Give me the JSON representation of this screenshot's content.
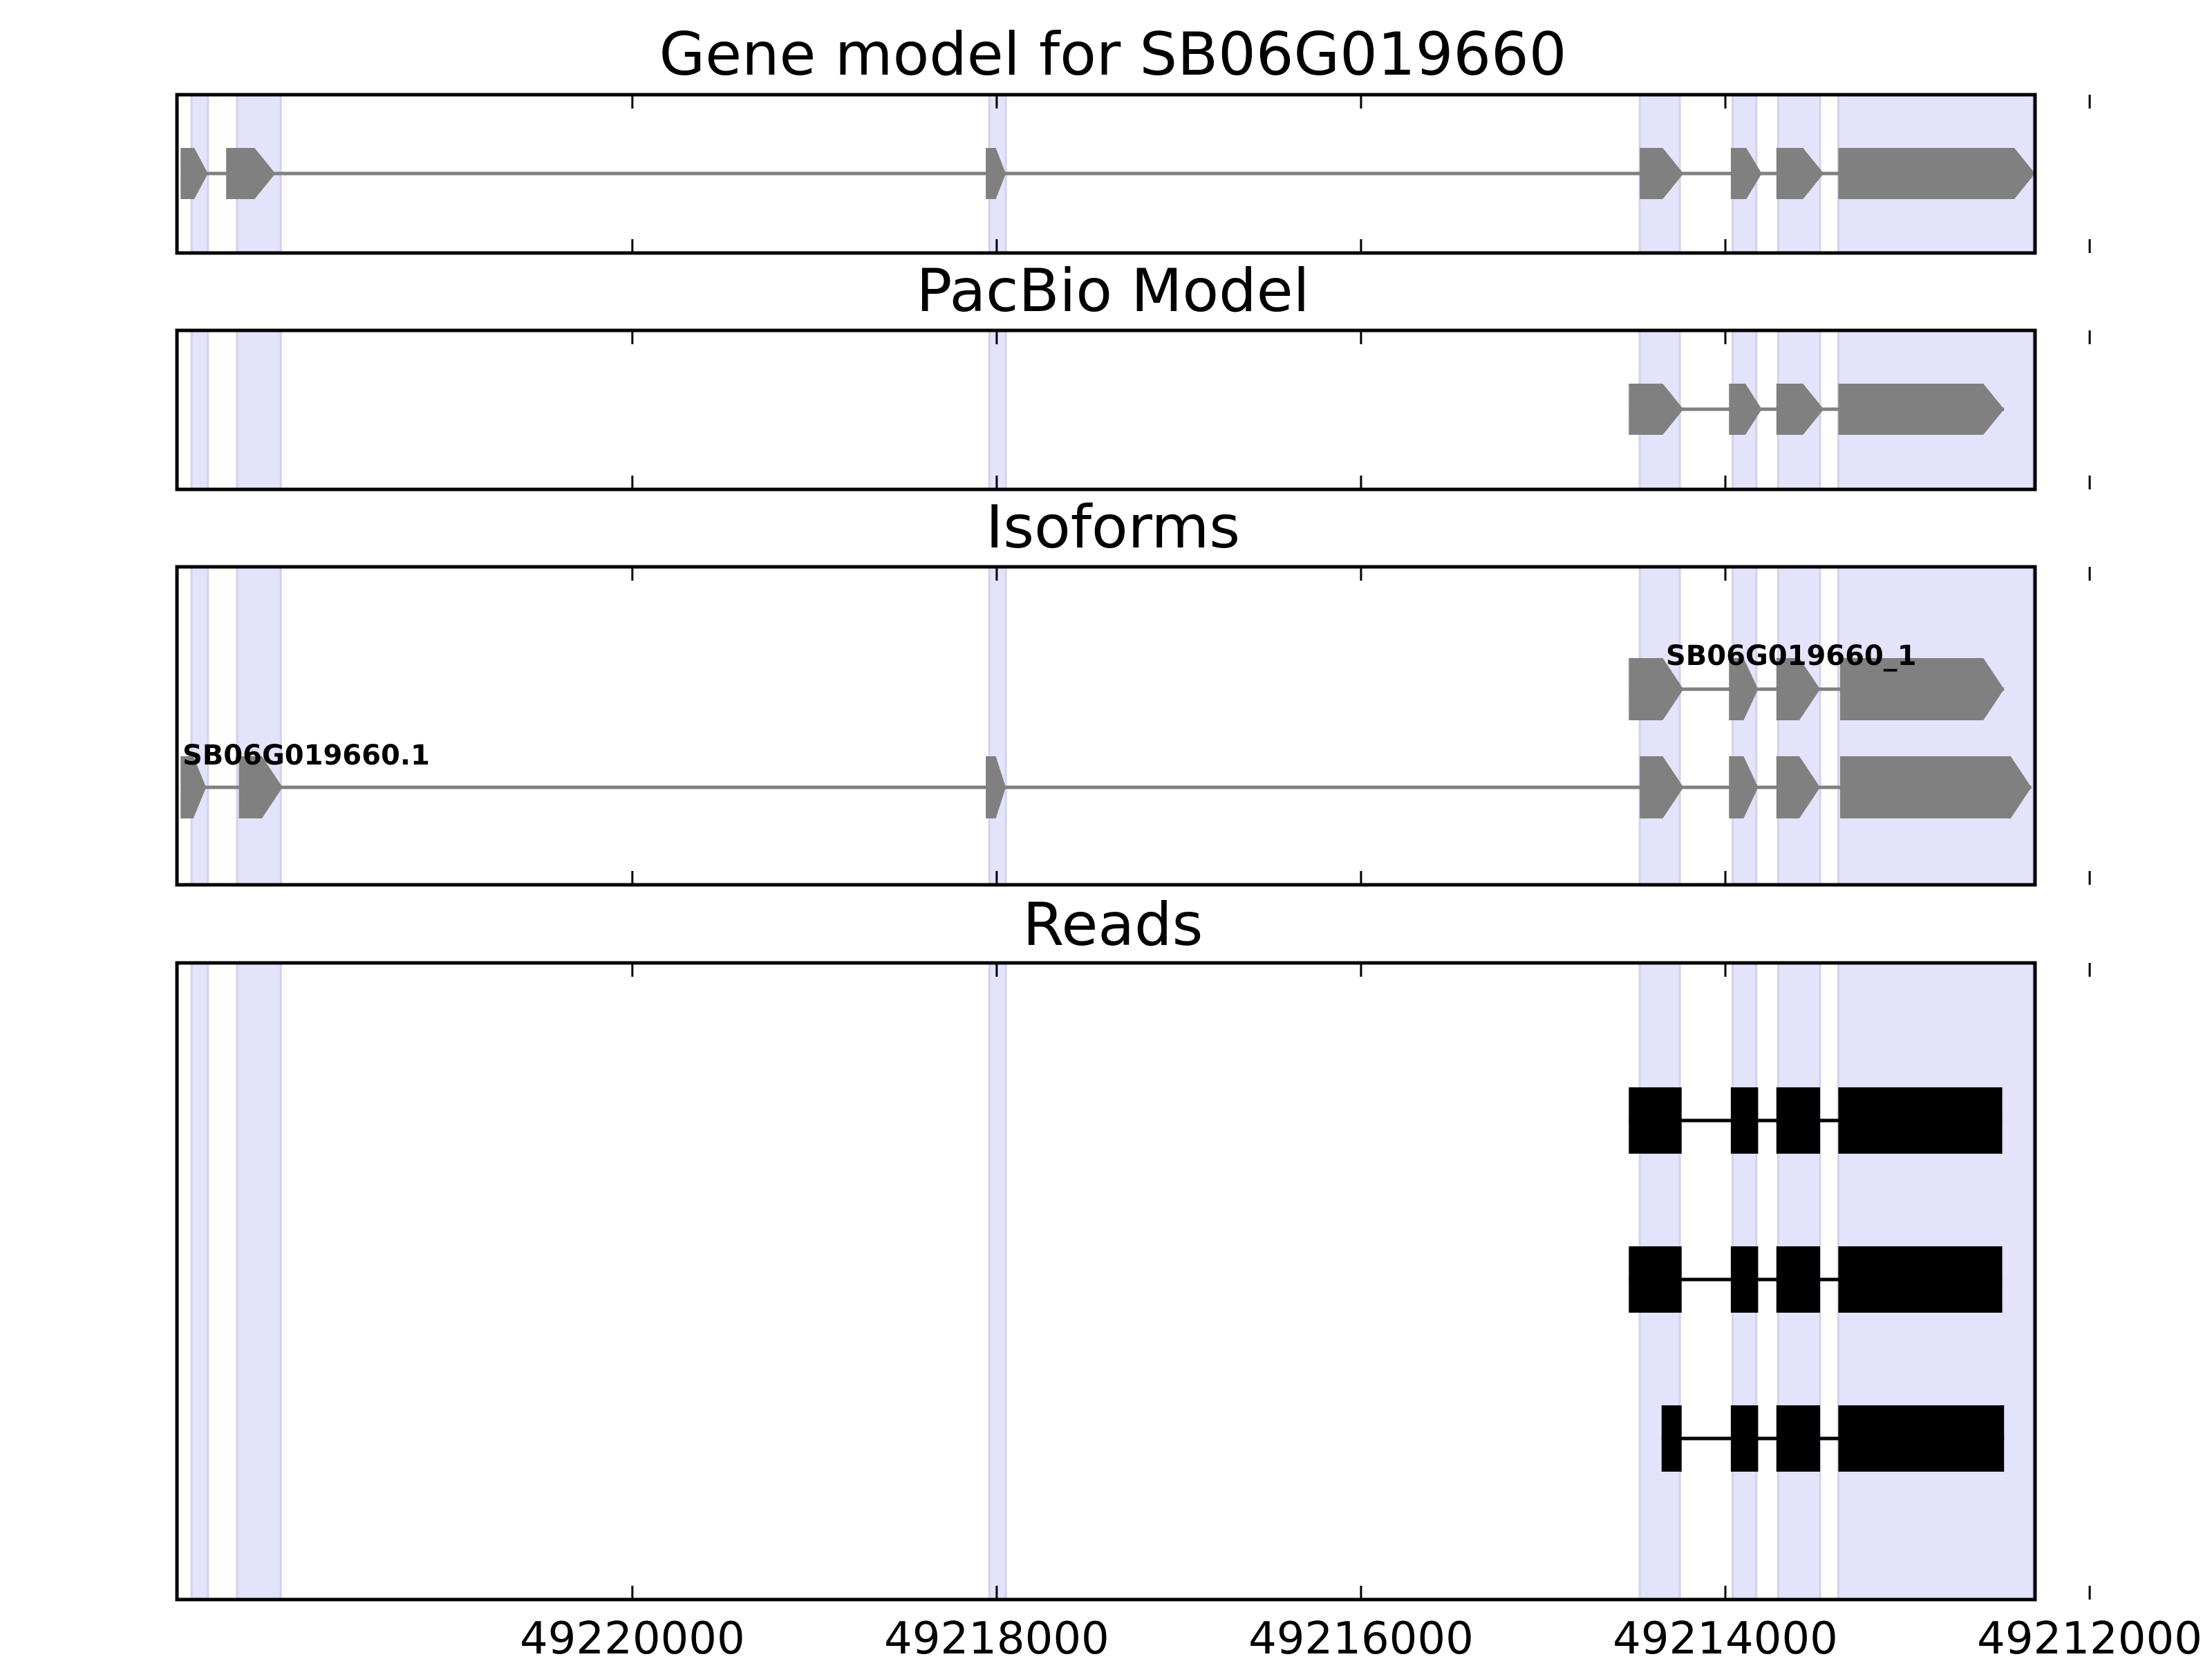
{
  "chart_data": {
    "type": "gene-track",
    "strand": "-",
    "xlim": [
      49222500,
      49212300
    ],
    "xticks": [
      49220000,
      49218000,
      49216000,
      49214000,
      49212000
    ],
    "xtick_labels": [
      "49220000",
      "49218000",
      "49216000",
      "49214000",
      "49212000"
    ],
    "highlight_color": "#e3e3fb",
    "exon_color": "#808080",
    "read_color": "#000000",
    "highlight_regions": [
      [
        49222420,
        49222330
      ],
      [
        49222170,
        49221930
      ],
      [
        49218040,
        49217950
      ],
      [
        49214470,
        49214250
      ],
      [
        49213960,
        49213830
      ],
      [
        49213710,
        49213480
      ],
      [
        49213380,
        49212310
      ]
    ],
    "panels": [
      {
        "key": "gene_model",
        "title": "Gene model for SB06G019660",
        "rows": [
          {
            "label": "",
            "exons": [
              [
                49222480,
                49222330
              ],
              [
                49222230,
                49221960
              ],
              [
                49218060,
                49217950
              ],
              [
                49214470,
                49214230
              ],
              [
                49213970,
                49213800
              ],
              [
                49213720,
                49213460
              ],
              [
                49213380,
                49212300
              ]
            ]
          }
        ]
      },
      {
        "key": "pacbio_model",
        "title": "PacBio Model",
        "rows": [
          {
            "label": "",
            "exons": [
              [
                49214530,
                49214230
              ],
              [
                49213980,
                49213800
              ],
              [
                49213720,
                49213460
              ],
              [
                49213380,
                49212470
              ]
            ]
          }
        ]
      },
      {
        "key": "isoforms",
        "title": "Isoforms",
        "rows": [
          {
            "label": "SB06G019660_1",
            "exons": [
              [
                49214530,
                49214230
              ],
              [
                49213980,
                49213820
              ],
              [
                49213720,
                49213480
              ],
              [
                49213370,
                49212470
              ]
            ]
          },
          {
            "label": "SB06G019660.1",
            "exons": [
              [
                49222480,
                49222340
              ],
              [
                49222160,
                49221920
              ],
              [
                49218060,
                49217950
              ],
              [
                49214470,
                49214230
              ],
              [
                49213980,
                49213820
              ],
              [
                49213720,
                49213480
              ],
              [
                49213370,
                49212320
              ]
            ]
          }
        ]
      },
      {
        "key": "reads",
        "title": "Reads",
        "rows": [
          {
            "exons": [
              [
                49214530,
                49214240
              ],
              [
                49213970,
                49213820
              ],
              [
                49213720,
                49213480
              ],
              [
                49213380,
                49212480
              ]
            ]
          },
          {
            "exons": [
              [
                49214530,
                49214240
              ],
              [
                49213970,
                49213820
              ],
              [
                49213720,
                49213480
              ],
              [
                49213380,
                49212480
              ]
            ]
          },
          {
            "exons": [
              [
                49214350,
                49214240
              ],
              [
                49213970,
                49213820
              ],
              [
                49213720,
                49213480
              ],
              [
                49213380,
                49212470
              ]
            ]
          }
        ]
      }
    ]
  }
}
